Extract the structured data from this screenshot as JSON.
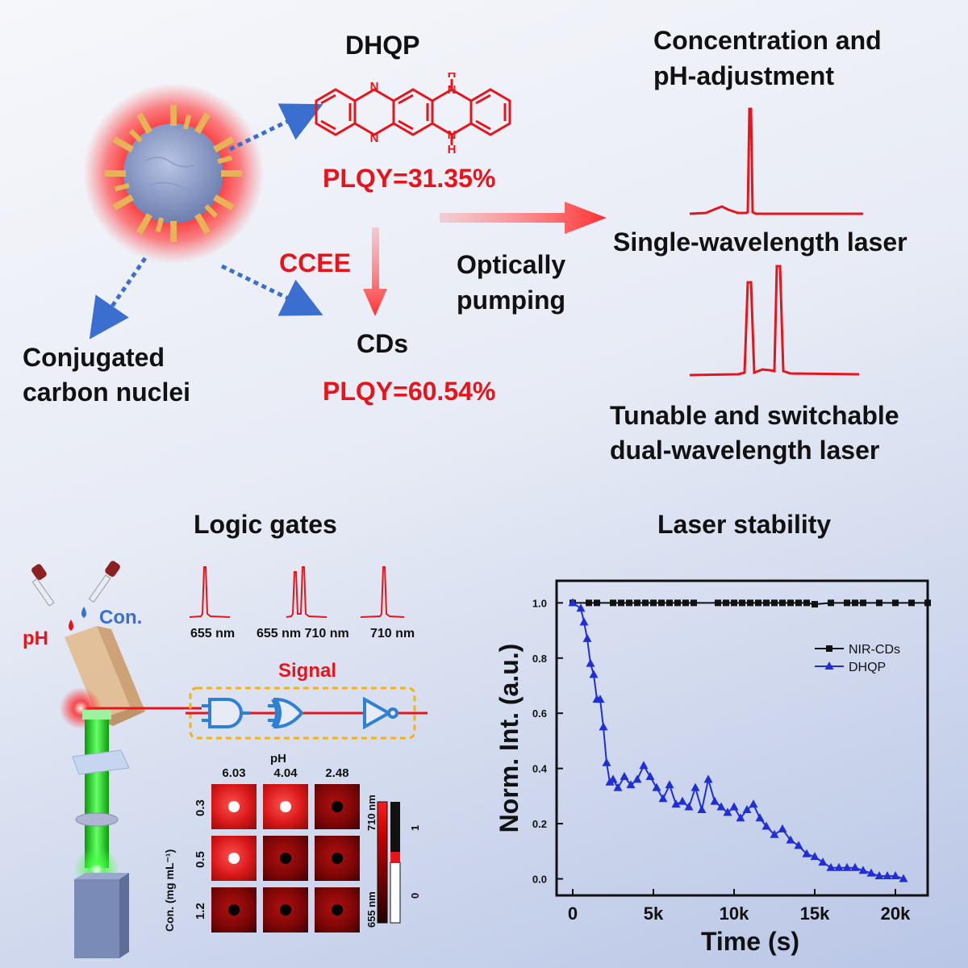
{
  "top": {
    "dhqp_title": "DHQP",
    "plqy_dhqp": "PLQY=31.35%",
    "ccee": "CCEE",
    "cds": "CDs",
    "plqy_cds": "PLQY=60.54%",
    "conjugated_line1": "Conjugated",
    "conjugated_line2": "carbon nuclei",
    "optically_line1": "Optically",
    "optically_line2": "pumping",
    "conc_line1": "Concentration and",
    "conc_line2": "pH-adjustment",
    "single_laser": "Single-wavelength laser",
    "tunable_line1": "Tunable and switchable",
    "tunable_line2": "dual-wavelength laser",
    "mol_h_top": "H",
    "mol_h_bottom": "H",
    "mol_n": "N"
  },
  "logic": {
    "title": "Logic gates",
    "ph_label": "pH",
    "con_label": "Con.",
    "signal_label": "Signal",
    "spectra_labels": [
      "655 nm",
      "655 nm 710 nm",
      "710 nm"
    ],
    "grid_ph_axis": "pH",
    "grid_ph_values": [
      "6.03",
      "4.04",
      "2.48"
    ],
    "grid_con_axis": "Con. (mg mL⁻¹)",
    "grid_con_values": [
      "0.3",
      "0.5",
      "1.2"
    ],
    "grid_states": [
      [
        1,
        1,
        0
      ],
      [
        1,
        0,
        0
      ],
      [
        0,
        0,
        0
      ]
    ],
    "colorbar_labels": [
      "710 nm",
      "655 nm"
    ],
    "colorbar_ticks": [
      "1",
      "0"
    ],
    "colors": {
      "accent_red": "#e8141b",
      "gate_blue": "#2e7fd6",
      "gate_box": "#f2b21b",
      "beam_green": "#22dd22"
    }
  },
  "chart_data": {
    "type": "line",
    "title": "Laser stability",
    "xlabel": "Time (s)",
    "ylabel": "Norm. Int. (a.u.)",
    "xlim": [
      -1000,
      22000
    ],
    "ylim": [
      -0.06,
      1.08
    ],
    "xticks": [
      0,
      5000,
      10000,
      15000,
      20000
    ],
    "xtick_labels": [
      "0",
      "5k",
      "10k",
      "15k",
      "20k"
    ],
    "yticks": [
      0.0,
      0.2,
      0.4,
      0.6,
      0.8,
      1.0
    ],
    "ytick_labels": [
      "0.0",
      "0.2",
      "0.4",
      "0.6",
      "0.8",
      "1.0"
    ],
    "legend_position": "top-right",
    "series": [
      {
        "name": "NIR-CDs",
        "color": "#111111",
        "marker": "square",
        "x": [
          0,
          1000,
          1500,
          2500,
          3000,
          3500,
          4000,
          4500,
          5000,
          5500,
          6000,
          6500,
          7000,
          7500,
          9000,
          9500,
          10000,
          10500,
          11000,
          11500,
          12000,
          12500,
          13000,
          13500,
          14000,
          14500,
          15000,
          16000,
          17000,
          17500,
          18000,
          19000,
          20000,
          21000,
          22000
        ],
        "y": [
          1.0,
          1.0,
          1.0,
          1.0,
          1.0,
          1.0,
          1.0,
          1.0,
          1.0,
          1.0,
          1.0,
          1.0,
          1.0,
          1.0,
          1.0,
          1.0,
          1.0,
          1.0,
          1.0,
          1.0,
          1.0,
          1.0,
          1.0,
          1.0,
          1.0,
          1.0,
          0.995,
          1.0,
          1.0,
          1.0,
          1.0,
          1.0,
          1.0,
          1.0,
          1.0
        ]
      },
      {
        "name": "DHQP",
        "color": "#1f2fd6",
        "marker": "triangle",
        "x": [
          0,
          500,
          700,
          900,
          1100,
          1300,
          1500,
          1700,
          1900,
          2100,
          2300,
          2500,
          2800,
          3200,
          3600,
          4000,
          4400,
          4800,
          5200,
          5600,
          6000,
          6400,
          6800,
          7200,
          7600,
          8000,
          8400,
          8800,
          9200,
          9600,
          10000,
          10400,
          10800,
          11200,
          11600,
          12000,
          12500,
          13000,
          13500,
          14000,
          14500,
          15000,
          15500,
          16000,
          16500,
          17000,
          17500,
          18000,
          18500,
          19000,
          19500,
          20000,
          20500
        ],
        "y": [
          1.0,
          0.98,
          0.93,
          0.87,
          0.78,
          0.74,
          0.65,
          0.65,
          0.55,
          0.42,
          0.35,
          0.36,
          0.33,
          0.37,
          0.34,
          0.36,
          0.41,
          0.37,
          0.33,
          0.29,
          0.34,
          0.27,
          0.28,
          0.26,
          0.33,
          0.25,
          0.36,
          0.28,
          0.26,
          0.24,
          0.26,
          0.22,
          0.25,
          0.27,
          0.22,
          0.19,
          0.16,
          0.18,
          0.14,
          0.12,
          0.09,
          0.08,
          0.06,
          0.04,
          0.04,
          0.04,
          0.04,
          0.03,
          0.02,
          0.01,
          0.01,
          0.01,
          0.0
        ]
      }
    ]
  }
}
